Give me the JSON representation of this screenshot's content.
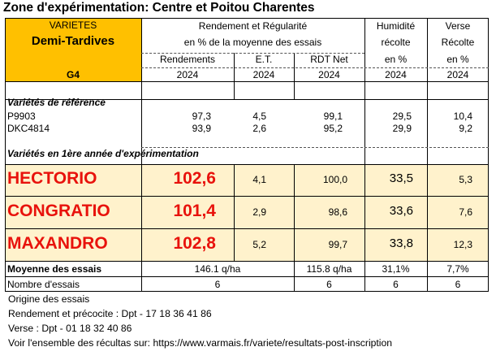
{
  "title": "Zone d'expérimentation: Centre et Poitou Charentes",
  "colors": {
    "orange": "#ffc000",
    "cream": "#fff2cc",
    "red": "#e8120c",
    "border": "#000000"
  },
  "header": {
    "varietes": "VARIETES",
    "group": "Demi-Tardives",
    "code": "G4",
    "rend_title": "Rendement et Régularité",
    "rend_sub": "en % de la moyenne des essais",
    "humid_1": "Humidité",
    "humid_2": "récolte",
    "humid_3": "en %",
    "verse_1": "Verse",
    "verse_2": "Récolte",
    "verse_3": "en %",
    "col_rendements": "Rendements",
    "col_et": "E.T.",
    "col_rdt": "RDT Net",
    "year": "2024"
  },
  "ref_label": "Variétés de référence",
  "ref_rows": [
    {
      "name": "P9903",
      "rend": "97,3",
      "et": "4,5",
      "rdt": "99,1",
      "hum": "29,5",
      "verse": "10,4"
    },
    {
      "name": "DKC4814",
      "rend": "93,9",
      "et": "2,6",
      "rdt": "95,2",
      "hum": "29,9",
      "verse": "9,2"
    }
  ],
  "new_label": "Variétés en 1ère année d'expérimentation",
  "new_rows": [
    {
      "name": "HECTORIO",
      "rend": "102,6",
      "et": "4,1",
      "rdt": "100,0",
      "hum": "33,5",
      "verse": "5,3"
    },
    {
      "name": "CONGRATIO",
      "rend": "101,4",
      "et": "2,9",
      "rdt": "98,6",
      "hum": "33,6",
      "verse": "7,6"
    },
    {
      "name": "MAXANDRO",
      "rend": "102,8",
      "et": "5,2",
      "rdt": "99,7",
      "hum": "33,8",
      "verse": "12,3"
    }
  ],
  "moyenne": {
    "label": "Moyenne des essais",
    "rend": "146.1 q/ha",
    "rdt": "115.8 q/ha",
    "hum": "31,1%",
    "verse": "7,7%"
  },
  "nombre": {
    "label": "Nombre d'essais",
    "rend": "6",
    "rdt": "6",
    "hum": "6",
    "verse": "6"
  },
  "notes": {
    "origine": "Origine des essais",
    "rendement": "Rendement et précocite :  Dpt - 17 18 36 41 86",
    "verse": "Verse : Dpt - 01 18 32 40 86",
    "voir": "Voir l'ensemble des récultas sur: https://www.varmais.fr/variete/resultats-post-inscription"
  }
}
